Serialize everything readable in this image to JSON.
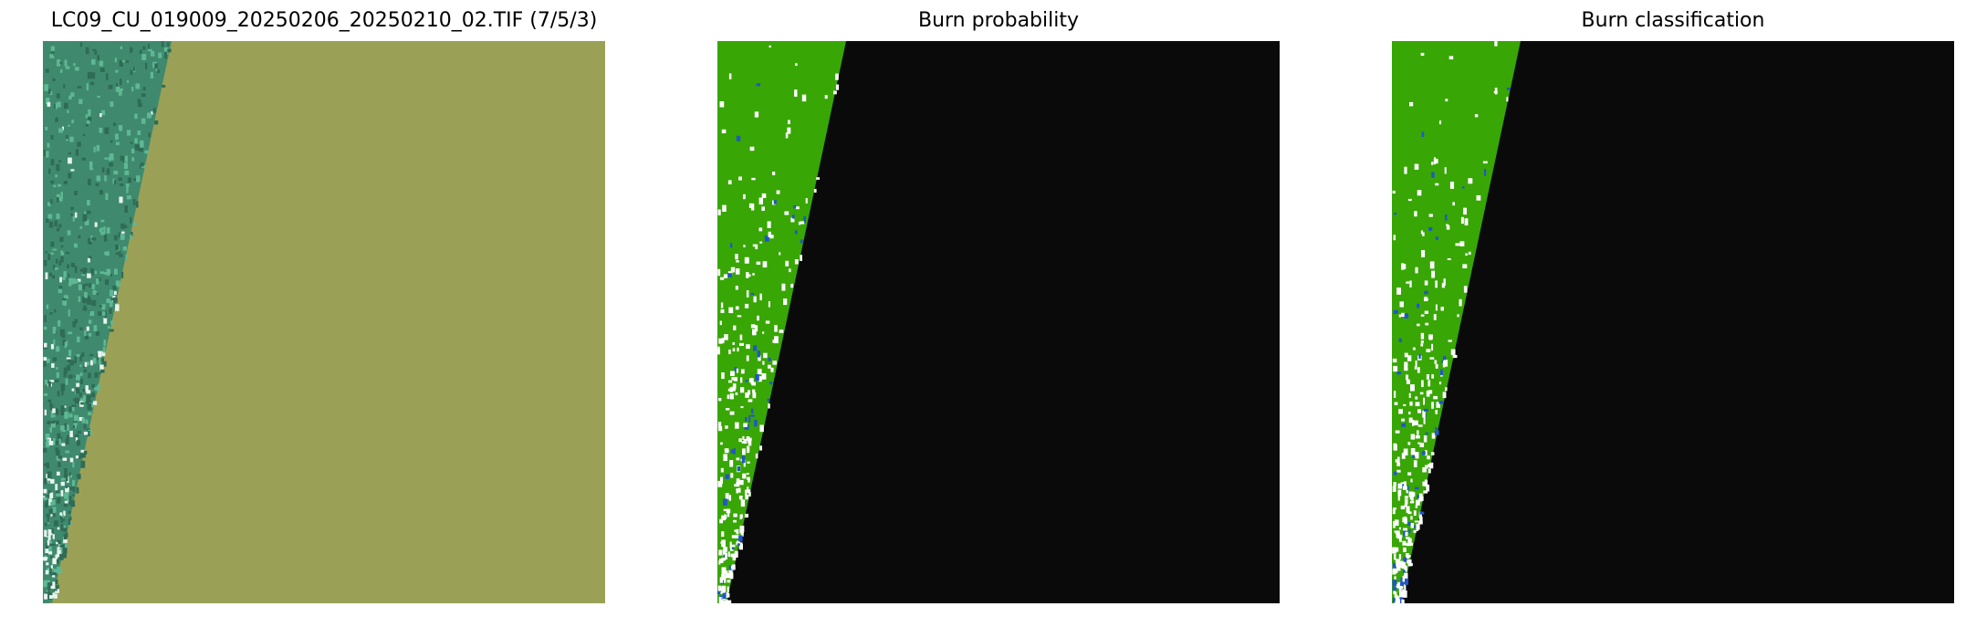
{
  "figure": {
    "panels": [
      {
        "title": "LC09_CU_019009_20250206_20250210_02.TIF (7/5/3)",
        "type": "false-color-composite",
        "colors": {
          "valid": "#3f8a6e",
          "nodata": "#9aa157"
        }
      },
      {
        "title": "Burn probability",
        "type": "probability-map",
        "colors": {
          "valid": "#38a605",
          "nodata": "#0a0a0a",
          "specks": "#ffffff",
          "burn": "#2255cc"
        }
      },
      {
        "title": "Burn classification",
        "type": "classification-map",
        "colors": {
          "valid": "#38a605",
          "nodata": "#0a0a0a",
          "specks": "#ffffff",
          "burn": "#2255cc"
        }
      }
    ]
  }
}
